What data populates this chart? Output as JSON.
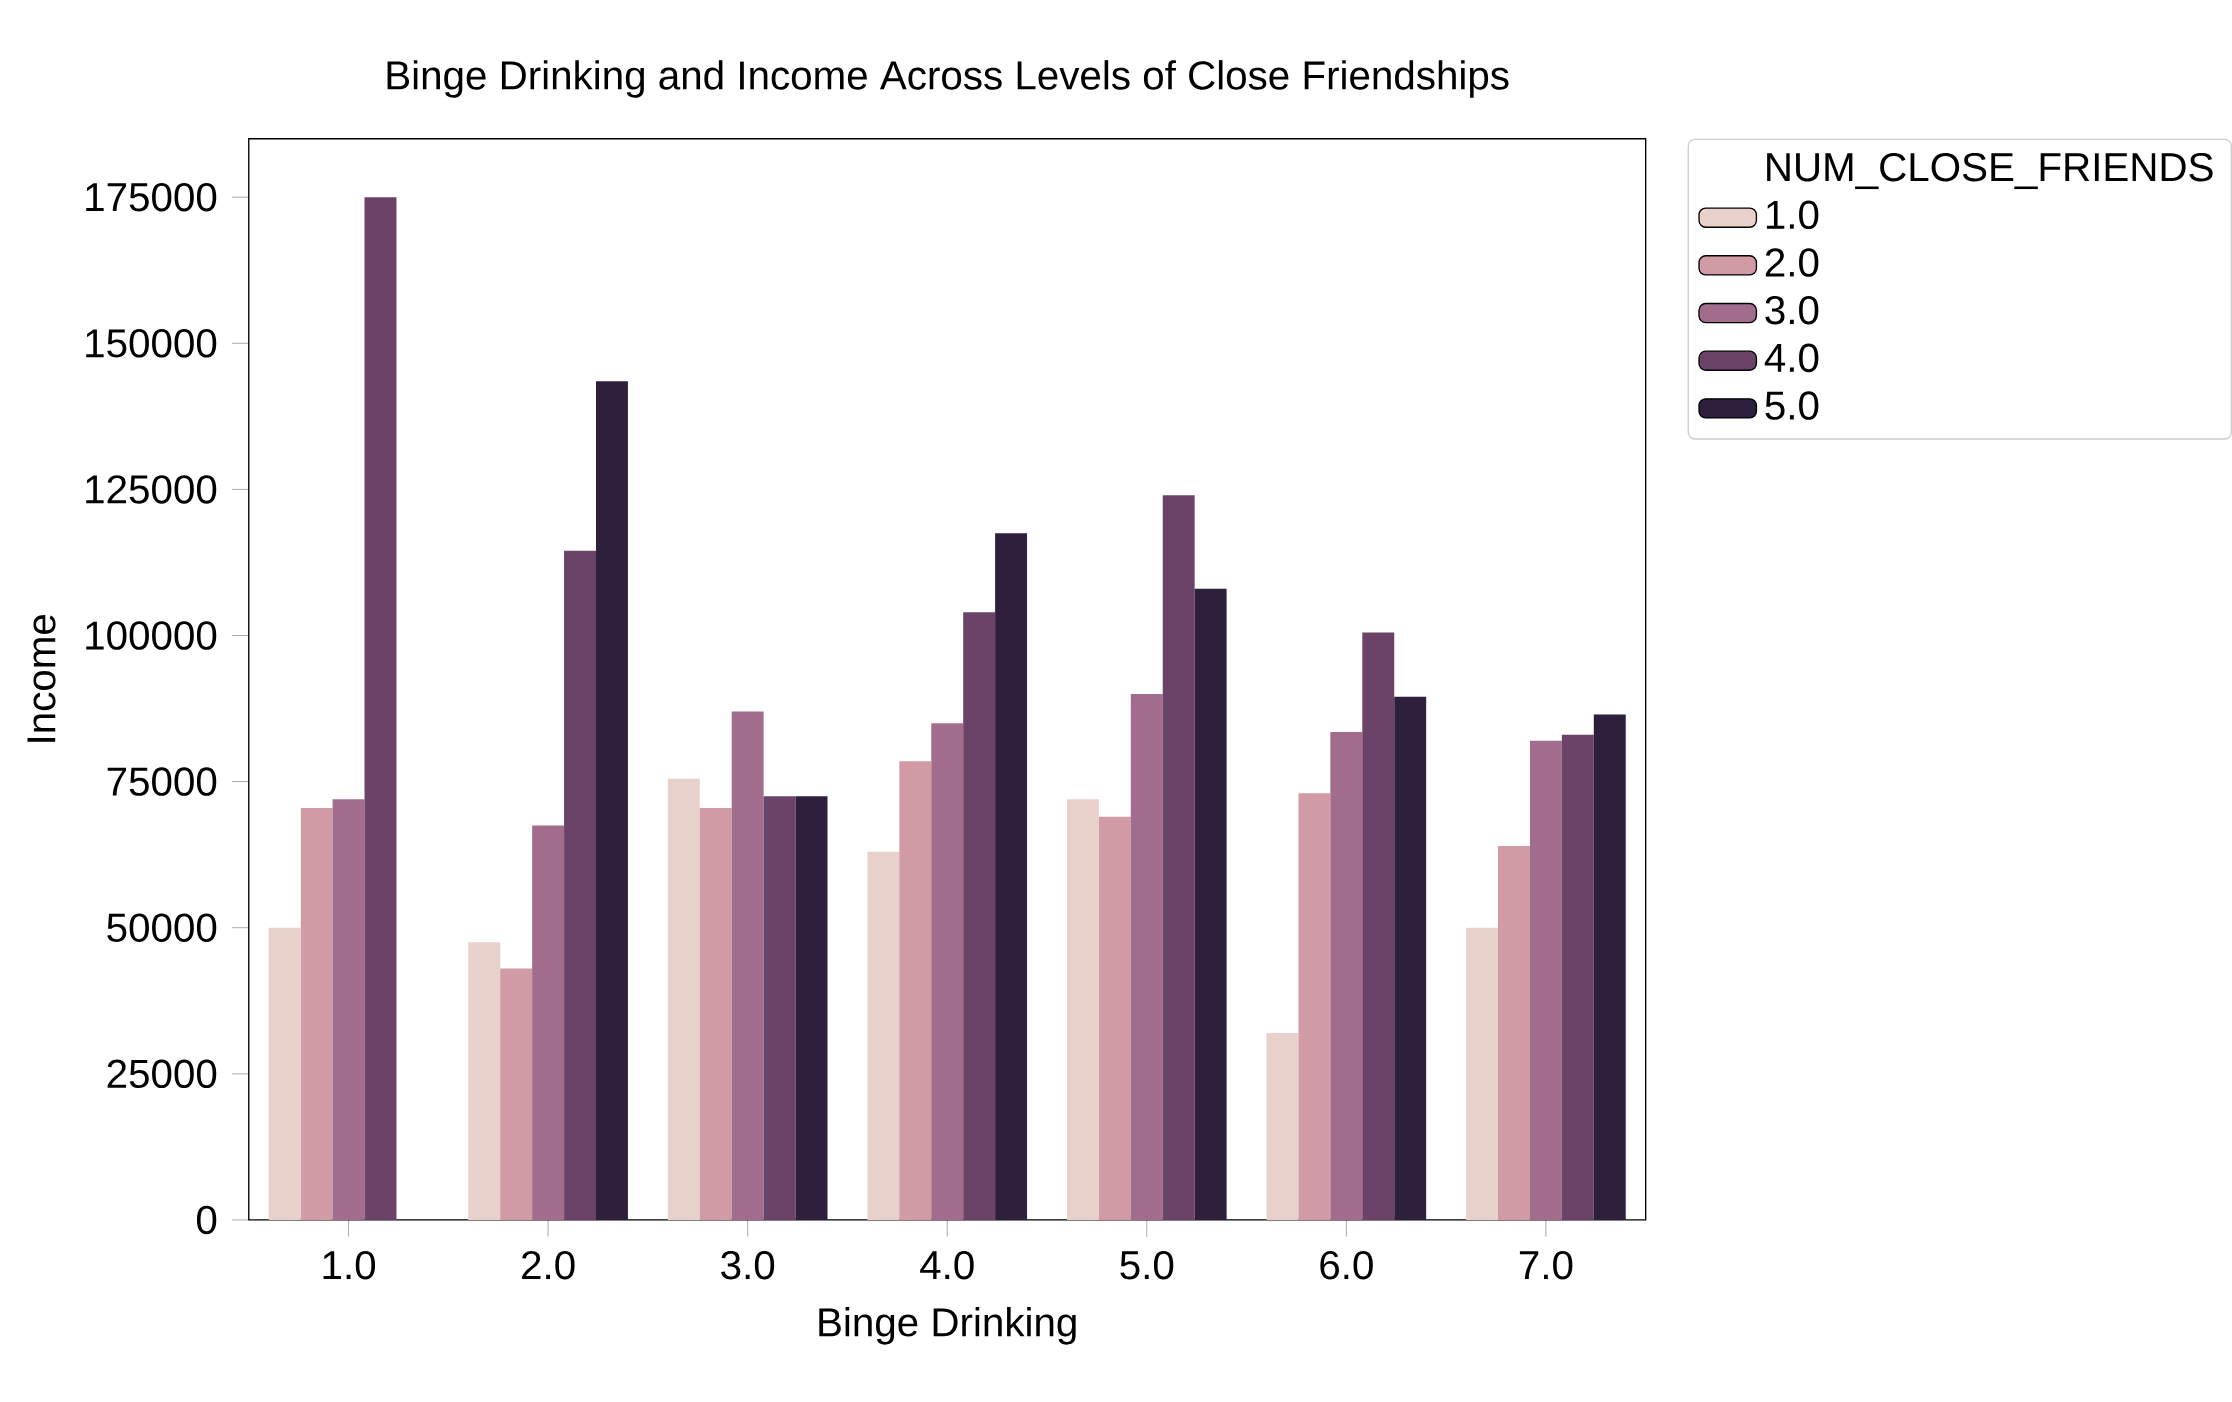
{
  "chart_data": {
    "type": "bar",
    "title": "Binge Drinking and Income Across Levels of Close Friendships",
    "xlabel": "Binge Drinking",
    "ylabel": "Income",
    "legend_title": "NUM_CLOSE_FRIENDS",
    "legend": "right",
    "categories": [
      "1.0",
      "2.0",
      "3.0",
      "4.0",
      "5.0",
      "6.0",
      "7.0"
    ],
    "ylim": [
      0,
      185000
    ],
    "yticks": [
      0,
      25000,
      50000,
      75000,
      100000,
      125000,
      150000,
      175000
    ],
    "series": [
      {
        "name": "1.0",
        "color": "#e9d1cb",
        "values": [
          50000,
          47500,
          75500,
          63000,
          72000,
          32000,
          50000
        ]
      },
      {
        "name": "2.0",
        "color": "#d09ba5",
        "values": [
          70500,
          43000,
          70500,
          78500,
          69000,
          73000,
          64000
        ]
      },
      {
        "name": "3.0",
        "color": "#a26d8c",
        "values": [
          72000,
          67500,
          87000,
          85000,
          90000,
          83500,
          82000
        ]
      },
      {
        "name": "4.0",
        "color": "#6b4268",
        "values": [
          175000,
          114500,
          72500,
          104000,
          124000,
          100500,
          83000
        ]
      },
      {
        "name": "5.0",
        "color": "#2e1f3d",
        "values": [
          null,
          143500,
          72500,
          117500,
          108000,
          89500,
          86500
        ]
      }
    ]
  }
}
